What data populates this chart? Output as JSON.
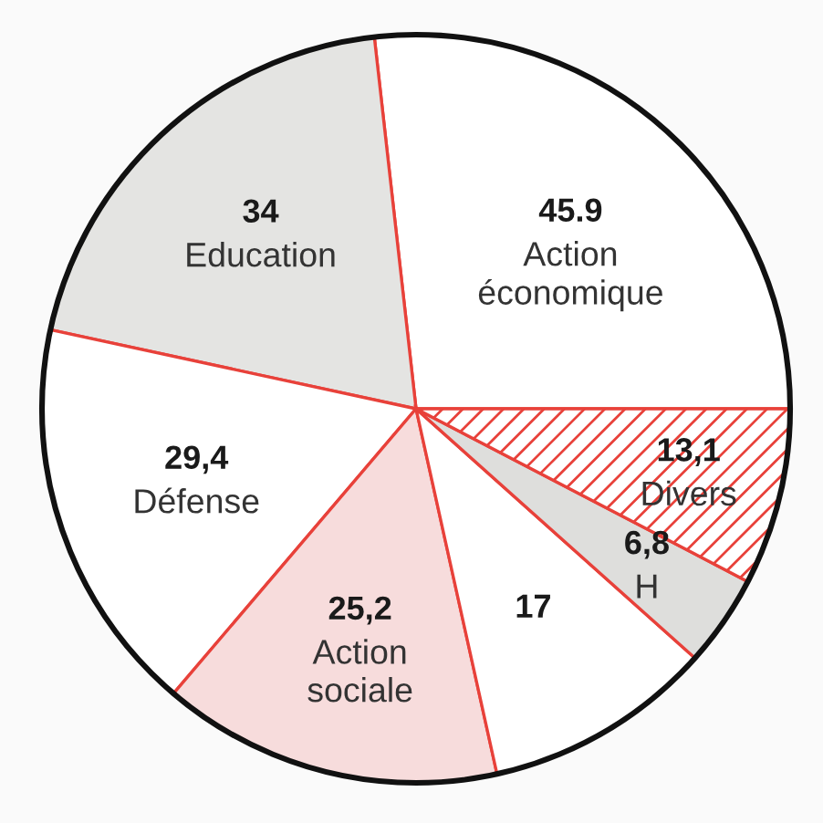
{
  "chart_data": {
    "type": "pie",
    "categories": [
      "Action économique",
      "Education",
      "Défense",
      "Action sociale",
      null,
      "H",
      "Divers"
    ],
    "values": [
      45.9,
      34,
      29.4,
      25.2,
      17,
      6.8,
      13.1
    ],
    "value_labels": [
      "45.9",
      "34",
      "29,4",
      "25,2",
      "17",
      "6,8",
      "13,1"
    ],
    "colors": [
      "#ffffff",
      "#e4e4e2",
      "#ffffff",
      "#f7dcdc",
      "#ffffff",
      "#dededc",
      "#e8413a"
    ]
  }
}
